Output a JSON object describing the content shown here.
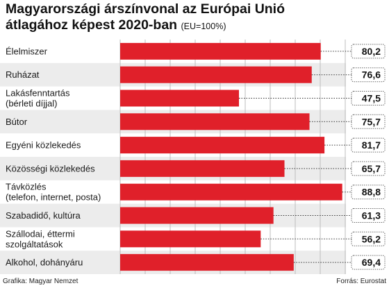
{
  "title_line1": "Magyarországi árszínvonal az Európai Unió",
  "title_line2": "átlagához képest 2020-ban",
  "subtitle": "(EU=100%)",
  "credit_left": "Grafika: Magyar Nemzet",
  "credit_right": "Forrás: Eurostat",
  "colors": {
    "bar": "#e0202a",
    "stripe": "#ececec",
    "grid": "#bdbdbd"
  },
  "chart_data": {
    "type": "bar",
    "orientation": "horizontal",
    "categories": [
      [
        "Élelmiszer"
      ],
      [
        "Ruházat"
      ],
      [
        "Lakásfenntartás",
        "(bérleti díjjal)"
      ],
      [
        "Bútor"
      ],
      [
        "Egyéni közlekedés"
      ],
      [
        "Közösségi közlekedés"
      ],
      [
        "Távközlés",
        "(telefon, internet, posta)"
      ],
      [
        "Szabadidő, kultúra"
      ],
      [
        "Szállodai, éttermi",
        "szolgáltatások"
      ],
      [
        "Alkohol, dohányáru"
      ]
    ],
    "values": [
      80.2,
      76.6,
      47.5,
      75.7,
      81.7,
      65.7,
      88.8,
      61.3,
      56.2,
      69.4
    ],
    "value_labels": [
      "80,2",
      "76,6",
      "47,5",
      "75,7",
      "81,7",
      "65,7",
      "88,8",
      "61,3",
      "56,2",
      "69,4"
    ],
    "xlim": [
      0,
      100
    ],
    "grid": true,
    "unit": "EU=100%"
  }
}
